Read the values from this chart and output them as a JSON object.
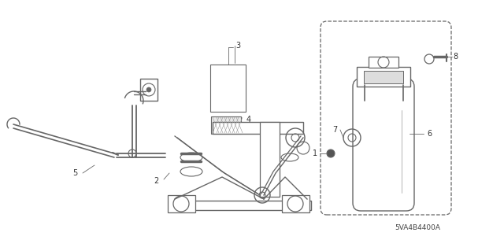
{
  "bg_color": "#ffffff",
  "line_color": "#666666",
  "label_color": "#333333",
  "fig_width": 6.4,
  "fig_height": 3.19,
  "dpi": 100,
  "part_code": "5VA4B4400A",
  "xlim": [
    0,
    640
  ],
  "ylim": [
    0,
    319
  ]
}
